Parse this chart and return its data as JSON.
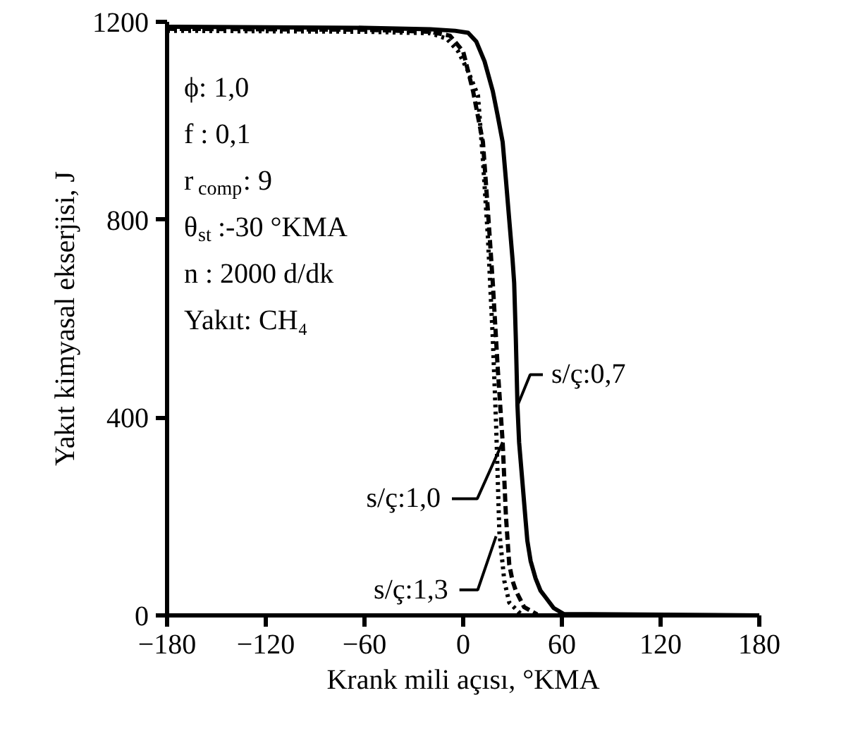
{
  "chart_data": {
    "type": "line",
    "xlabel": "Krank mili açısı, °KMA",
    "ylabel": "Yakıt kimyasal ekserjisi, J",
    "xlim": [
      -180,
      180
    ],
    "ylim": [
      0,
      1200
    ],
    "xticks": [
      -180,
      -120,
      -60,
      0,
      60,
      120,
      180
    ],
    "yticks": [
      0,
      400,
      800,
      1200
    ],
    "grid": false,
    "marker": "none",
    "series": [
      {
        "color": "#000000",
        "line_style": "solid",
        "x": [
          -180,
          -60,
          -20,
          -5,
          3,
          8,
          13,
          18,
          21,
          24,
          26,
          28,
          30,
          31,
          32,
          33,
          34,
          36,
          38,
          39,
          41,
          44,
          47,
          50,
          55,
          61,
          180
        ],
        "values": [
          1190,
          1188,
          1185,
          1182,
          1178,
          1160,
          1120,
          1060,
          1010,
          957,
          880,
          800,
          720,
          672,
          560,
          424,
          350,
          270,
          190,
          151,
          110,
          75,
          50,
          37,
          15,
          3,
          0
        ]
      },
      {
        "color": "#000000",
        "line_style": "dashed",
        "x": [
          -180,
          -60,
          -20,
          -8,
          0,
          6,
          12,
          15,
          18,
          21,
          24,
          26,
          28,
          30,
          32,
          37,
          45
        ],
        "values": [
          1186,
          1184,
          1180,
          1172,
          1140,
          1060,
          957,
          820,
          672,
          500,
          350,
          200,
          103,
          70,
          50,
          17,
          2
        ]
      },
      {
        "color": "#000000",
        "line_style": "dotted",
        "x": [
          -180,
          -60,
          -20,
          -10,
          -3,
          3,
          9,
          12,
          15,
          18,
          20,
          22,
          25,
          28,
          35
        ],
        "values": [
          1182,
          1180,
          1177,
          1166,
          1140,
          1100,
          1051,
          920,
          766,
          560,
          387,
          168,
          70,
          26,
          3
        ]
      }
    ],
    "annotations": [
      "ϕ: 1,0",
      "f : 0,1",
      "r$_{comp}$: 9",
      "θ$_{st}$:-30 °KMA",
      "n : 2000 d/dk",
      "Yakıt: CH₄",
      {
        "text": "s/ç:0,7",
        "x": 33,
        "y": 424
      },
      {
        "text": "s/ç:1,0",
        "x": 24,
        "y": 350
      },
      {
        "text": "s/ç:1,3",
        "x": 20,
        "y": 160
      }
    ]
  }
}
